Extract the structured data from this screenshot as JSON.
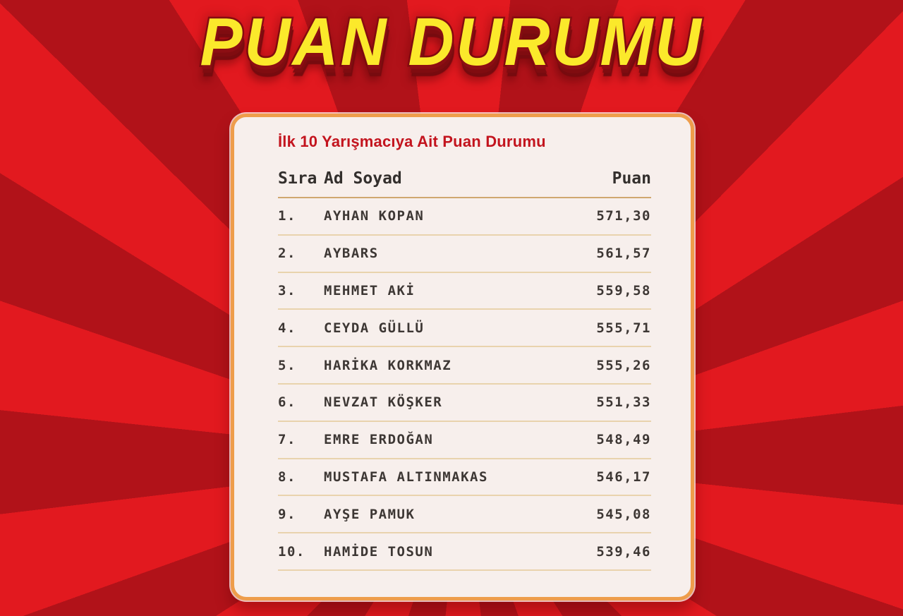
{
  "title": "PUAN DURUMU",
  "card": {
    "subtitle": "İlk 10 Yarışmacıya Ait Puan Durumu",
    "columns": {
      "rank": "Sıra",
      "name": "Ad Soyad",
      "score": "Puan"
    },
    "rows": [
      {
        "rank": "1.",
        "name": "AYHAN KOPAN",
        "score": "571,30"
      },
      {
        "rank": "2.",
        "name": "AYBARS",
        "score": "561,57"
      },
      {
        "rank": "3.",
        "name": "MEHMET AKİ",
        "score": "559,58"
      },
      {
        "rank": "4.",
        "name": "CEYDA GÜLLÜ",
        "score": "555,71"
      },
      {
        "rank": "5.",
        "name": "HARİKA KORKMAZ",
        "score": "555,26"
      },
      {
        "rank": "6.",
        "name": "NEVZAT KÖŞKER",
        "score": "551,33"
      },
      {
        "rank": "7.",
        "name": "EMRE ERDOĞAN",
        "score": "548,49"
      },
      {
        "rank": "8.",
        "name": "MUSTAFA ALTINMAKAS",
        "score": "546,17"
      },
      {
        "rank": "9.",
        "name": "AYŞE PAMUK",
        "score": "545,08"
      },
      {
        "rank": "10.",
        "name": "HAMİDE TOSUN",
        "score": "539,46"
      }
    ]
  },
  "colors": {
    "bg_bright": "#e2191f",
    "bg_dark": "#b11219",
    "title_fill": "#fbe92b",
    "title_outline": "#8c0e13",
    "card_bg": "#f7efec",
    "card_border": "#ee9d4b",
    "subtitle": "#c3141e",
    "header_text": "#332f2d",
    "row_text": "#3d3734",
    "divider_header": "#cfa770",
    "divider_row": "#e9d3ad"
  }
}
